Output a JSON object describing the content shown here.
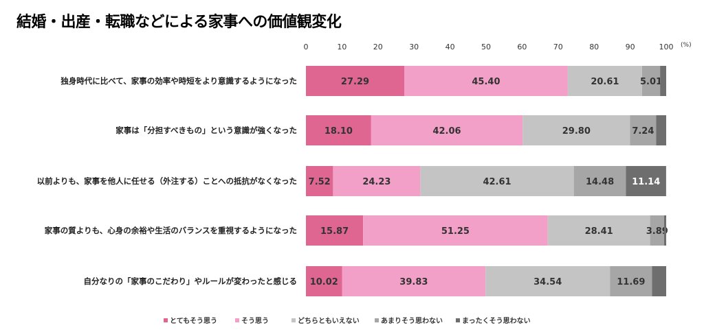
{
  "chart_data": {
    "type": "bar",
    "orientation": "horizontal",
    "stacked": true,
    "title": "結婚・出産・転職などによる家事への価値観変化",
    "unit": "(%)",
    "xlim": [
      0,
      100
    ],
    "xticks": [
      "0",
      "10",
      "20",
      "30",
      "40",
      "50",
      "60",
      "70",
      "80",
      "90",
      "100"
    ],
    "grid": false,
    "legend_position": "bottom",
    "categories": [
      "独身時代に比べて、家事の効率や時短をより意識するようになった",
      "家事は「分担すべきもの」という意識が強くなった",
      "以前よりも、家事を他人に任せる（外注する）ことへの抵抗がなくなった",
      "家事の質よりも、心身の余裕や生活のバランスを重視するようになった",
      "自分なりの「家事のこだわり」やルールが変わったと感じる"
    ],
    "series": [
      {
        "name": "とてもそう思う",
        "color": "#e06692",
        "values": [
          27.29,
          18.1,
          7.52,
          15.87,
          10.02
        ],
        "labels": [
          "27.29",
          "18.10",
          "7.52",
          "15.87",
          "10.02"
        ]
      },
      {
        "name": "そう思う",
        "color": "#f2a0c8",
        "values": [
          45.4,
          42.06,
          24.23,
          51.25,
          39.83
        ],
        "labels": [
          "45.40",
          "42.06",
          "24.23",
          "51.25",
          "39.83"
        ]
      },
      {
        "name": "どちらともいえない",
        "color": "#c4c4c4",
        "values": [
          20.61,
          29.8,
          42.61,
          28.41,
          34.54
        ],
        "labels": [
          "20.61",
          "29.80",
          "42.61",
          "28.41",
          "34.54"
        ]
      },
      {
        "name": "あまりそう思わない",
        "color": "#a6a6a6",
        "values": [
          5.01,
          7.24,
          14.48,
          3.89,
          11.69
        ],
        "labels": [
          "5.01",
          "7.24",
          "14.48",
          "3.89",
          "11.69"
        ]
      },
      {
        "name": "まったくそう思わない",
        "color": "#6e6e6e",
        "values": [
          1.69,
          2.8,
          11.14,
          0.58,
          3.92
        ],
        "labels": [
          "",
          "",
          "11.14",
          "",
          ""
        ]
      }
    ]
  }
}
